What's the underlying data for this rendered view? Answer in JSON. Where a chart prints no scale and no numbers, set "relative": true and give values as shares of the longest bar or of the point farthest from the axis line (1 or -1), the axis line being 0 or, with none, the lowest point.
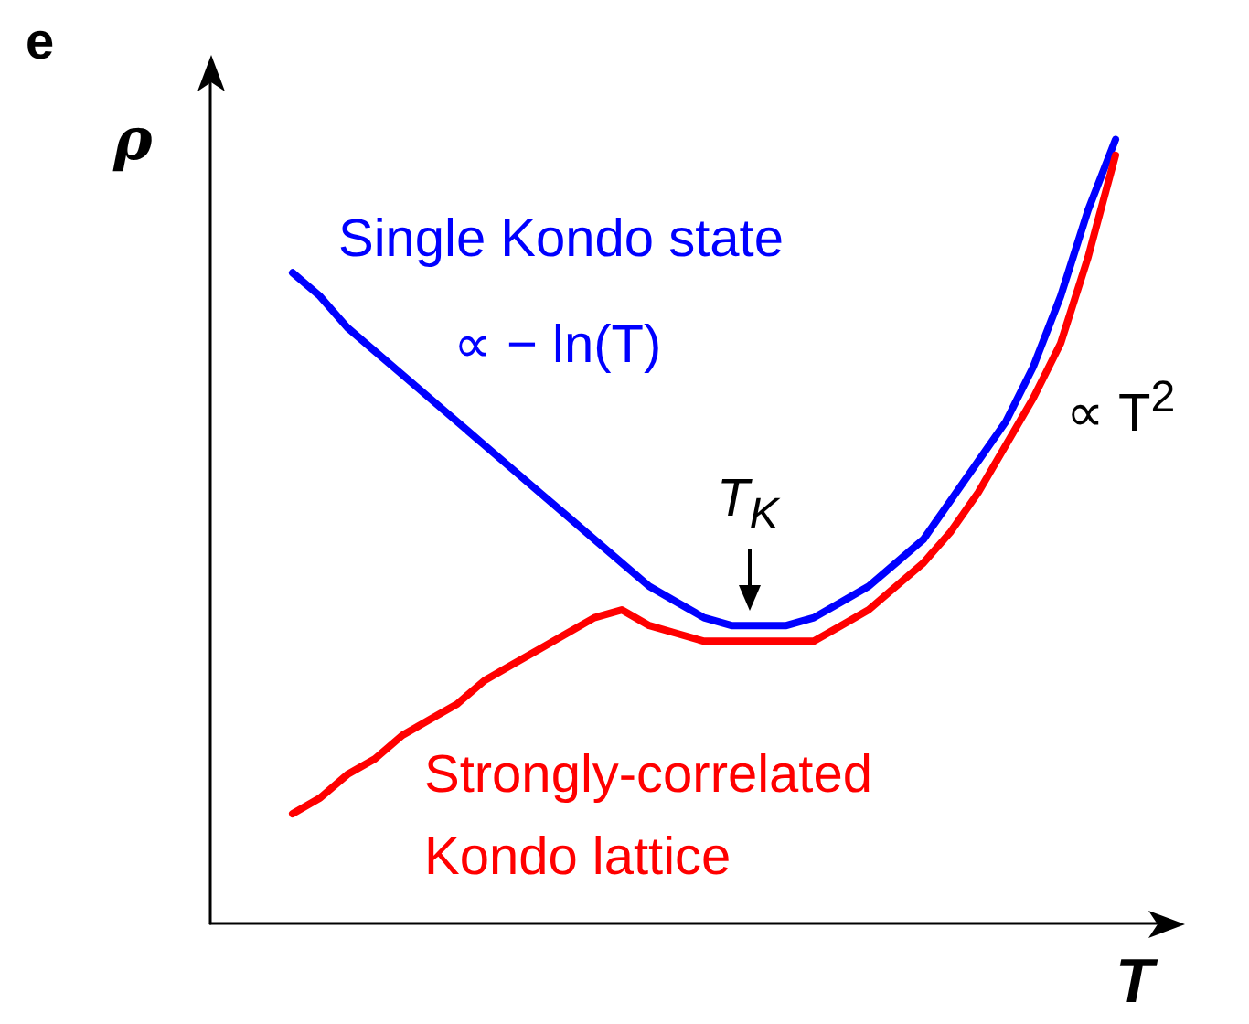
{
  "chart_data": {
    "type": "line",
    "relative": true,
    "xlabel": "T",
    "ylabel": "ρ",
    "grid": false,
    "legend": false,
    "marker": "none",
    "line_style": "solid",
    "categories": [
      null,
      null,
      null,
      null,
      null,
      null,
      null,
      null,
      null,
      null,
      null,
      null,
      null,
      null,
      null,
      null,
      null,
      null,
      null,
      null,
      null,
      null,
      null,
      null,
      null,
      null,
      null,
      null,
      null,
      null,
      null,
      null,
      null,
      null,
      null,
      null
    ],
    "series": [
      {
        "name": "Single Kondo state",
        "color": "#0000ff",
        "values": [
          null,
          null,
          null,
          0.83,
          0.8,
          0.76,
          0.73,
          0.7,
          0.67,
          0.64,
          0.61,
          0.58,
          0.55,
          0.52,
          0.49,
          0.46,
          0.43,
          0.41,
          0.39,
          0.38,
          0.38,
          0.38,
          0.39,
          0.41,
          0.43,
          0.46,
          0.49,
          0.54,
          0.59,
          0.64,
          0.71,
          0.8,
          0.91,
          1,
          null,
          null
        ]
      },
      {
        "name": "Strongly-correlated Kondo lattice",
        "color": "#ff0000",
        "values": [
          null,
          null,
          null,
          0.14,
          0.16,
          0.19,
          0.21,
          0.24,
          0.26,
          0.28,
          0.31,
          0.33,
          0.35,
          0.37,
          0.39,
          0.4,
          0.38,
          0.37,
          0.36,
          0.36,
          0.36,
          0.36,
          0.36,
          0.38,
          0.4,
          0.43,
          0.46,
          0.5,
          0.55,
          0.61,
          0.67,
          0.74,
          0.85,
          0.98,
          null,
          null
        ]
      }
    ],
    "annotations": [
      "e",
      "∝ − ln(T)",
      "T$_{K}$",
      "∝ T$^{2}$"
    ]
  }
}
